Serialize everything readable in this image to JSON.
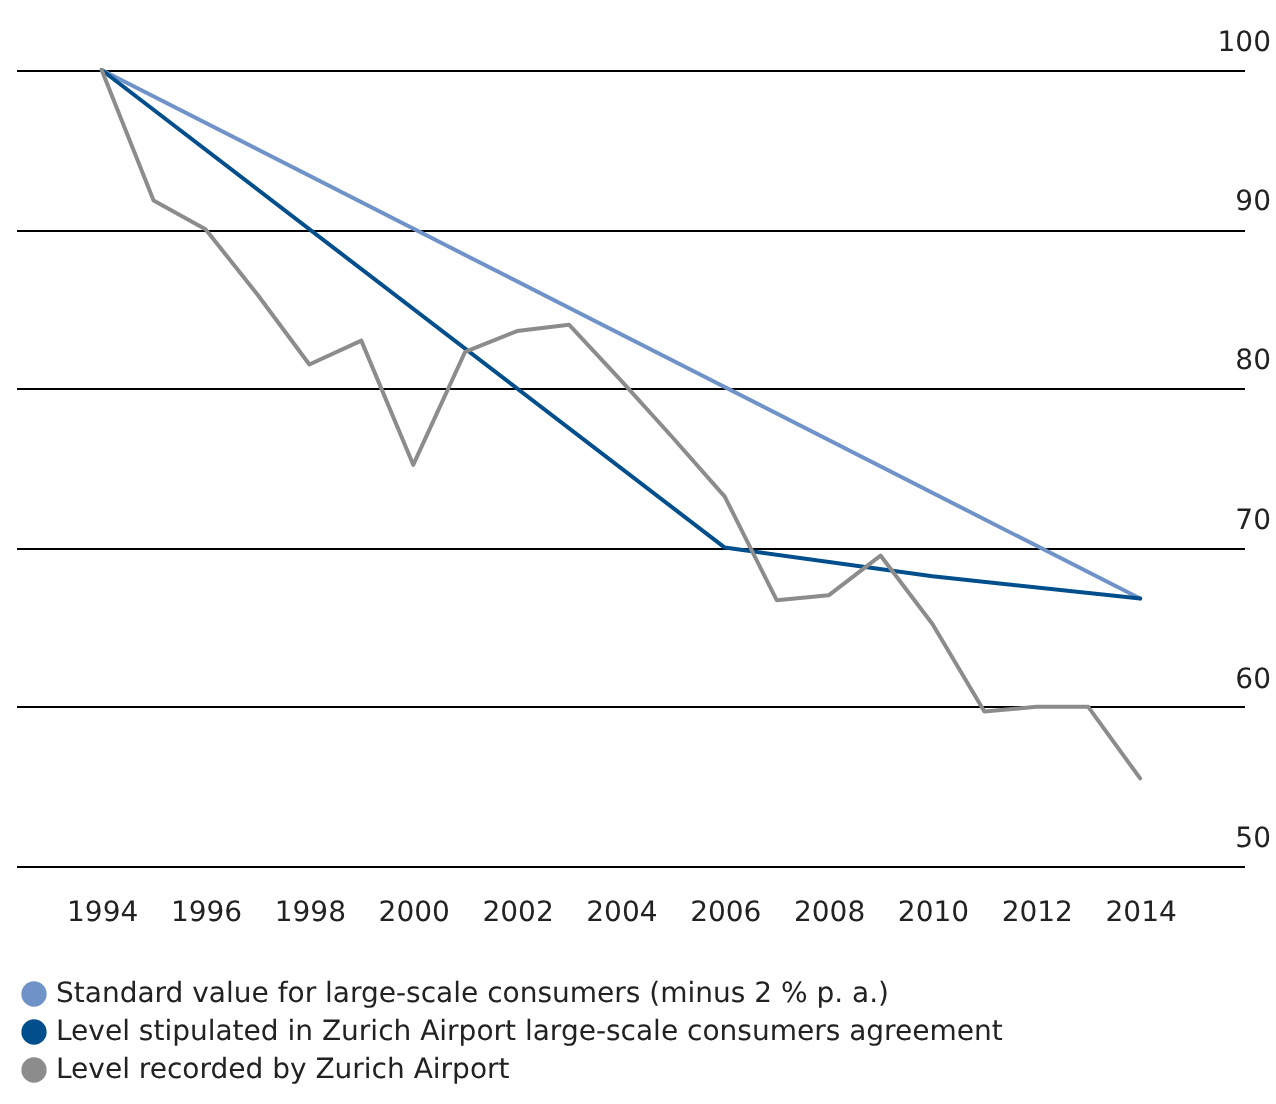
{
  "chart_data": {
    "type": "line",
    "xlim": [
      1992.35,
      2016
    ],
    "xticks": [
      1994,
      1996,
      1998,
      2000,
      2002,
      2004,
      2006,
      2008,
      2010,
      2012,
      2014
    ],
    "ylim": [
      50,
      100
    ],
    "yticks": [
      50,
      60,
      70,
      80,
      90,
      100
    ],
    "grid": "y",
    "legend": "bottom",
    "marker": "none",
    "line_style": "solid",
    "series": [
      {
        "name": "Standard value for large-scale consumers (minus 2 % p. a.)",
        "color": "#6f93c8",
        "x": [
          1994,
          2014
        ],
        "values": [
          100,
          66.8
        ]
      },
      {
        "name": "Level stipulated in Zurich Airport large-scale consumers agreement",
        "color": "#004f8c",
        "x": [
          1994,
          2006,
          2010,
          2014
        ],
        "values": [
          100,
          70,
          68.2,
          66.8
        ]
      },
      {
        "name": "Level recorded by Zurich Airport",
        "color": "#8c8c8c",
        "x": [
          1994,
          1995,
          1996,
          1997,
          1998,
          1999,
          2000,
          2001,
          2002,
          2003,
          2004,
          2005,
          2006,
          2007,
          2008,
          2009,
          2010,
          2011,
          2012,
          2013,
          2014
        ],
        "values": [
          100,
          91.8,
          90,
          85.9,
          81.5,
          83,
          75.2,
          82.3,
          83.6,
          84,
          80.5,
          76.9,
          73.2,
          66.7,
          67,
          69.5,
          65.2,
          59.7,
          60,
          60,
          55.5
        ]
      }
    ]
  }
}
